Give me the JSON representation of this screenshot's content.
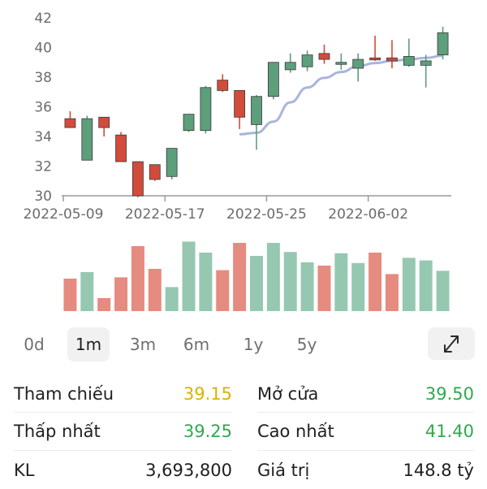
{
  "chart_data": {
    "type": "candlestick",
    "y_ticks": [
      "42",
      "40",
      "38",
      "36",
      "34",
      "32",
      "30"
    ],
    "x_ticks": [
      "2022-05-09",
      "2022-05-17",
      "2022-05-25",
      "2022-06-02"
    ],
    "ylim": [
      30,
      42
    ],
    "grid": false,
    "colors": {
      "up": "#5d9e7b",
      "down": "#d24b3b",
      "ma": "#a9b5dc",
      "vol_up": "#96c8b1",
      "vol_down": "#e58b80"
    },
    "candles": [
      {
        "open": 35.2,
        "close": 34.6,
        "high": 35.7,
        "low": 34.6,
        "volume": 0.5
      },
      {
        "open": 32.4,
        "close": 35.2,
        "high": 35.4,
        "low": 32.4,
        "volume": 0.6
      },
      {
        "open": 35.3,
        "close": 34.6,
        "high": 35.3,
        "low": 34.0,
        "volume": 0.2
      },
      {
        "open": 34.1,
        "close": 32.3,
        "high": 34.3,
        "low": 32.3,
        "volume": 0.52
      },
      {
        "open": 32.3,
        "close": 30.0,
        "high": 32.3,
        "low": 29.9,
        "volume": 1.0
      },
      {
        "open": 32.1,
        "close": 31.1,
        "high": 32.1,
        "low": 31.0,
        "volume": 0.65
      },
      {
        "open": 31.3,
        "close": 33.2,
        "high": 33.2,
        "low": 31.1,
        "volume": 0.37
      },
      {
        "open": 34.4,
        "close": 35.5,
        "high": 35.5,
        "low": 34.3,
        "volume": 1.07
      },
      {
        "open": 34.4,
        "close": 37.3,
        "high": 37.4,
        "low": 34.2,
        "volume": 0.9
      },
      {
        "open": 37.8,
        "close": 37.1,
        "high": 38.2,
        "low": 37.0,
        "volume": 0.63
      },
      {
        "open": 37.1,
        "close": 35.3,
        "high": 37.1,
        "low": 34.5,
        "volume": 1.05
      },
      {
        "open": 34.8,
        "close": 36.7,
        "high": 36.8,
        "low": 33.1,
        "volume": 0.85
      },
      {
        "open": 36.7,
        "close": 39.0,
        "high": 39.0,
        "low": 36.5,
        "volume": 1.05
      },
      {
        "open": 38.5,
        "close": 39.0,
        "high": 39.6,
        "low": 38.3,
        "volume": 0.91
      },
      {
        "open": 38.7,
        "close": 39.5,
        "high": 39.8,
        "low": 38.4,
        "volume": 0.75
      },
      {
        "open": 39.6,
        "close": 39.2,
        "high": 40.2,
        "low": 38.9,
        "volume": 0.7
      },
      {
        "open": 38.9,
        "close": 39.0,
        "high": 39.6,
        "low": 38.5,
        "volume": 0.89
      },
      {
        "open": 38.6,
        "close": 39.2,
        "high": 39.6,
        "low": 37.7,
        "volume": 0.74
      },
      {
        "open": 39.3,
        "close": 39.2,
        "high": 40.8,
        "low": 39.1,
        "volume": 0.9
      },
      {
        "open": 39.3,
        "close": 39.1,
        "high": 40.5,
        "low": 38.6,
        "volume": 0.57
      },
      {
        "open": 38.8,
        "close": 39.4,
        "high": 40.6,
        "low": 38.7,
        "volume": 0.82
      },
      {
        "open": 38.8,
        "close": 39.1,
        "high": 39.5,
        "low": 37.3,
        "volume": 0.78
      },
      {
        "open": 39.5,
        "close": 41.0,
        "high": 41.4,
        "low": 39.2,
        "volume": 0.62
      }
    ],
    "ma_line": [
      {
        "i": 10,
        "y": 34.15
      },
      {
        "i": 11,
        "y": 34.25
      },
      {
        "i": 12,
        "y": 35.0
      },
      {
        "i": 13,
        "y": 36.3
      },
      {
        "i": 14,
        "y": 37.3
      },
      {
        "i": 15,
        "y": 37.95
      },
      {
        "i": 16,
        "y": 38.35
      },
      {
        "i": 17,
        "y": 38.75
      },
      {
        "i": 18,
        "y": 38.95
      },
      {
        "i": 19,
        "y": 39.1
      },
      {
        "i": 20,
        "y": 39.2
      },
      {
        "i": 21,
        "y": 39.3
      },
      {
        "i": 22,
        "y": 39.45
      }
    ]
  },
  "ranges": [
    "0d",
    "1m",
    "3m",
    "6m",
    "1y",
    "5y"
  ],
  "active_range": "1m",
  "stats": {
    "reference_label": "Tham chiếu",
    "reference_value": "39.15",
    "open_label": "Mở cửa",
    "open_value": "39.50",
    "low_label": "Thấp nhất",
    "low_value": "39.25",
    "high_label": "Cao nhất",
    "high_value": "41.40",
    "volume_label": "KL",
    "volume_value": "3,693,800",
    "value_label": "Giá trị",
    "value_value": "148.8 tỷ",
    "colors": {
      "reference": "#d9b200",
      "up": "#2ea94e",
      "neutral": "#202020"
    }
  }
}
